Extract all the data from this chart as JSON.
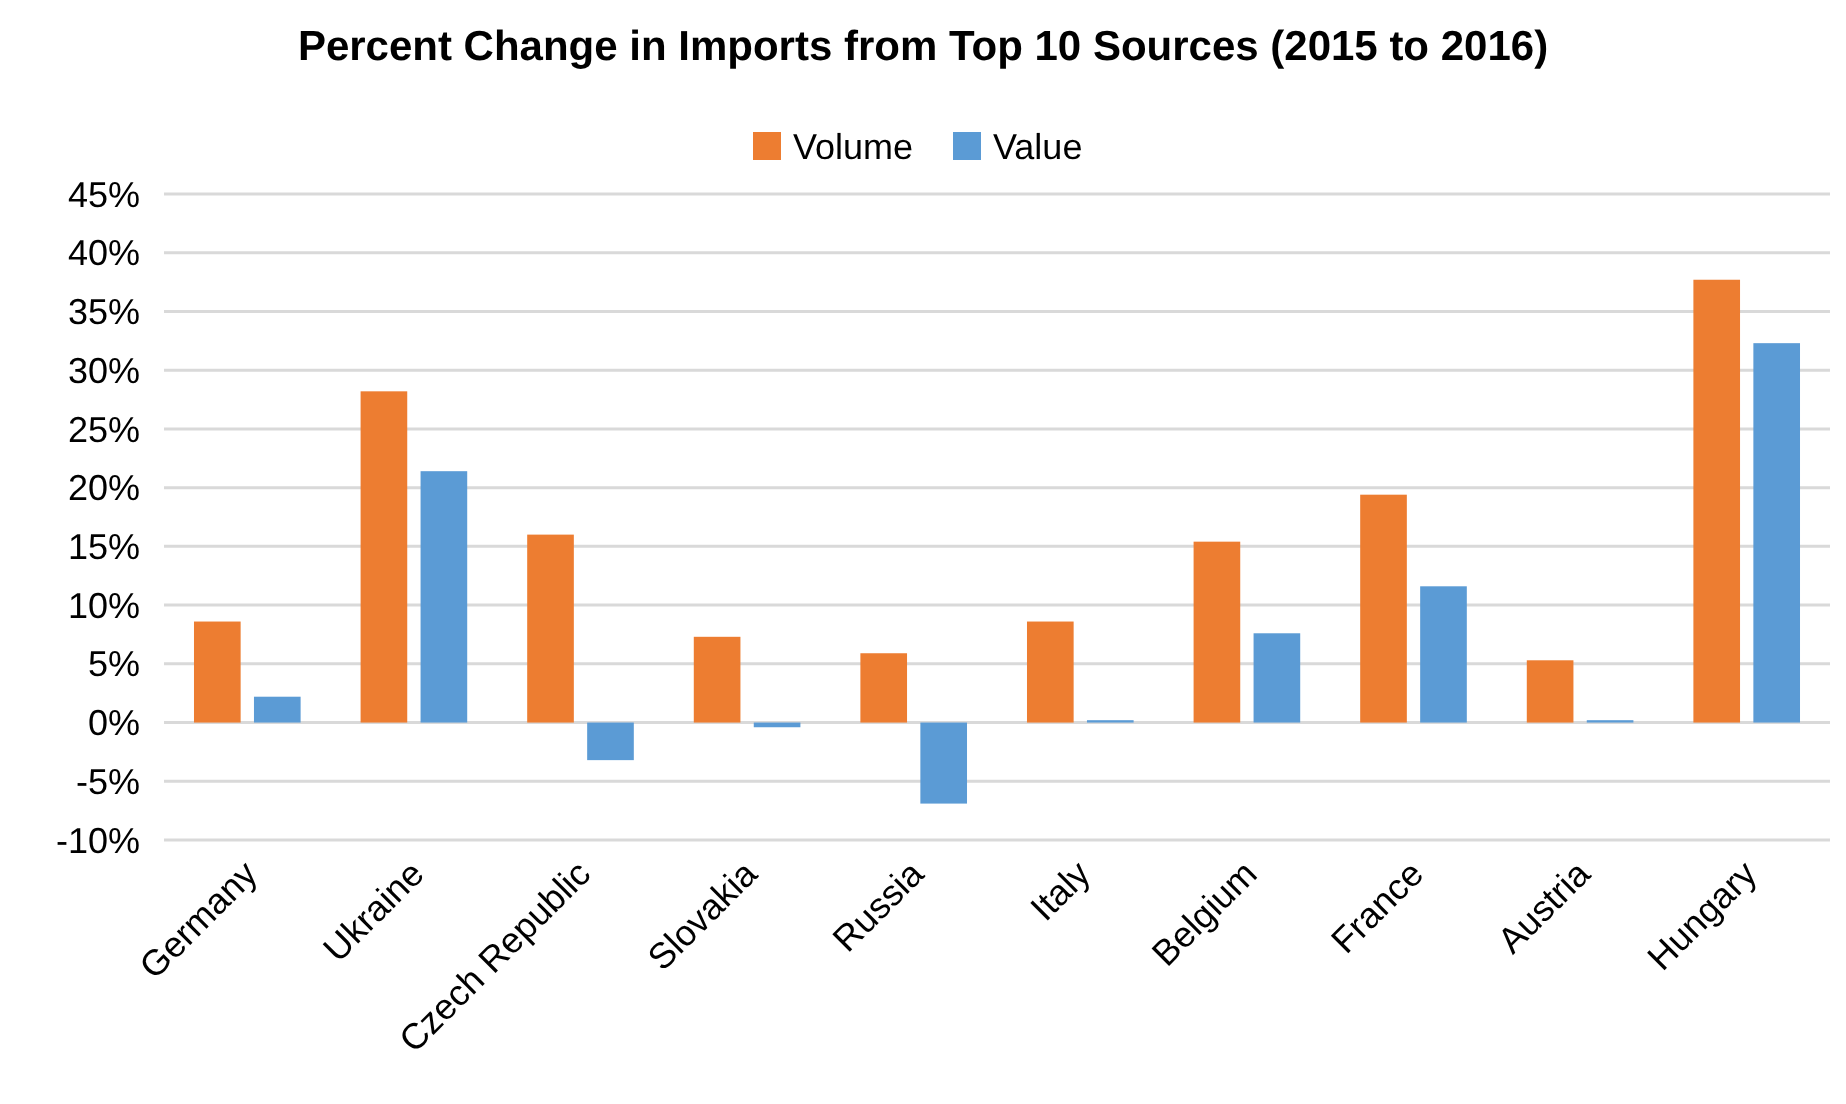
{
  "chart_data": {
    "type": "bar",
    "title": "Percent Change in Imports from Top 10 Sources (2015 to 2016)",
    "categories": [
      "Germany",
      "Ukraine",
      "Czech Republic",
      "Slovakia",
      "Russia",
      "Italy",
      "Belgium",
      "France",
      "Austria",
      "Hungary"
    ],
    "series": [
      {
        "name": "Volume",
        "color": "#ed7d31",
        "values": [
          8.6,
          28.2,
          16.0,
          7.3,
          5.9,
          8.6,
          15.4,
          19.4,
          5.3,
          37.7
        ]
      },
      {
        "name": "Value",
        "color": "#5b9bd5",
        "values": [
          2.2,
          21.4,
          -3.2,
          -0.4,
          -6.9,
          0.2,
          7.6,
          11.6,
          0.2,
          32.3
        ]
      }
    ],
    "ylim": [
      -10,
      45
    ],
    "yticks": [
      {
        "value": -10,
        "label": "-10%"
      },
      {
        "value": -5,
        "label": "-5%"
      },
      {
        "value": 0,
        "label": "0%"
      },
      {
        "value": 5,
        "label": "5%"
      },
      {
        "value": 10,
        "label": "10%"
      },
      {
        "value": 15,
        "label": "15%"
      },
      {
        "value": 20,
        "label": "20%"
      },
      {
        "value": 25,
        "label": "25%"
      },
      {
        "value": 30,
        "label": "30%"
      },
      {
        "value": 35,
        "label": "35%"
      },
      {
        "value": 40,
        "label": "40%"
      },
      {
        "value": 45,
        "label": "45%"
      }
    ],
    "grid": "y",
    "legend": "top"
  }
}
